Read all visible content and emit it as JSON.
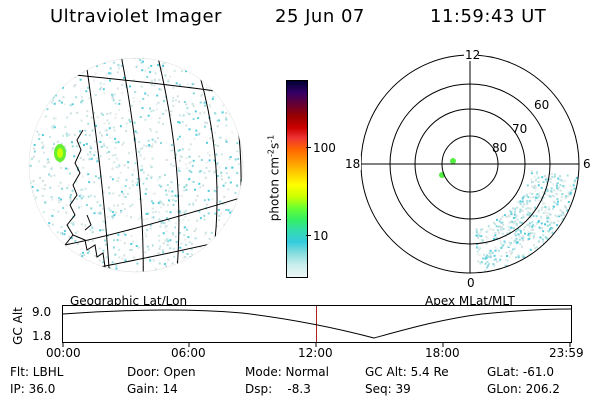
{
  "header": {
    "instrument": "Ultraviolet Imager",
    "date": "25 Jun 07",
    "time": "11:59:43 UT"
  },
  "geo_panel": {
    "label": "Geographic Lat/Lon"
  },
  "polar_panel": {
    "label": "Apex MLat/MLT",
    "mlt_labels": [
      "12",
      "18",
      "6",
      "0"
    ],
    "mlat_labels": [
      "60",
      "70",
      "80"
    ]
  },
  "colorbar": {
    "unit_label": "photon cm",
    "unit_sup1": "-2",
    "unit_mid": "s",
    "unit_sup2": "-1",
    "tick_labels": [
      "100",
      "10"
    ],
    "colors": [
      "#000033",
      "#330066",
      "#660033",
      "#990000",
      "#cc0000",
      "#ee3333",
      "#ff6600",
      "#ff9900",
      "#ffcc00",
      "#ffff00",
      "#ccff00",
      "#66ff33",
      "#33ee66",
      "#33ddaa",
      "#33ccdd",
      "#88dddd",
      "#cceeee",
      "#eef6f6"
    ]
  },
  "altitude_plot": {
    "ylabel": "GC Alt",
    "y_ticks": [
      "9.0",
      "1.8"
    ],
    "x_ticks": [
      "00:00",
      "06:00",
      "12:00",
      "18:00",
      "23:59"
    ],
    "current_time_fraction": 0.5
  },
  "info": {
    "filter": "Flt: LBHL",
    "ip": "IP: 36.0",
    "door": "Door: Open",
    "gain": "Gain: 14",
    "mode": "Mode: Normal",
    "dsp": "Dsp:    -8.3",
    "gc_alt": "GC Alt: 5.4 Re",
    "seq": "Seq: 39",
    "glat": "GLat: -61.0",
    "glon": "GLon: 206.2"
  }
}
